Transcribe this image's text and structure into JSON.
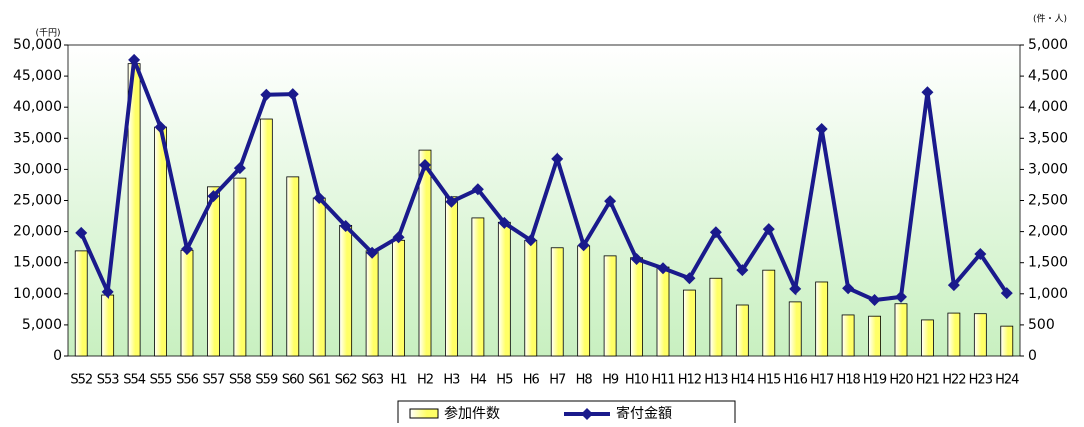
{
  "chart_data": {
    "type": "bar-line",
    "y_unit_label": "(千円)",
    "y2_unit_label": "(件・人)",
    "categories": [
      "S52",
      "S53",
      "S54",
      "S55",
      "S56",
      "S57",
      "S58",
      "S59",
      "S60",
      "S61",
      "S62",
      "S63",
      "H1",
      "H2",
      "H3",
      "H4",
      "H5",
      "H6",
      "H7",
      "H8",
      "H9",
      "H10",
      "H11",
      "H12",
      "H13",
      "H14",
      "H15",
      "H16",
      "H17",
      "H18",
      "H19",
      "H20",
      "H21",
      "H22",
      "H23",
      "H24"
    ],
    "series": [
      {
        "name": "参加件数",
        "type": "bar",
        "axis": "y2",
        "color": "#ffff66",
        "values": [
          1690,
          980,
          4700,
          3680,
          1700,
          2720,
          2860,
          3810,
          2880,
          2540,
          2100,
          1690,
          1860,
          3310,
          2560,
          2220,
          2150,
          1860,
          1740,
          1770,
          1610,
          1580,
          1430,
          1060,
          1250,
          820,
          1380,
          870,
          1190,
          660,
          640,
          840,
          580,
          690,
          680,
          480
        ]
      },
      {
        "name": "寄付金額",
        "type": "line",
        "axis": "y",
        "color": "#1a1a8c",
        "values": [
          19800,
          10300,
          47600,
          36800,
          17200,
          25700,
          30200,
          42000,
          42100,
          25400,
          20900,
          16600,
          19100,
          30700,
          24800,
          26800,
          21400,
          18600,
          31700,
          17800,
          24900,
          15600,
          14100,
          12500,
          19900,
          13800,
          20400,
          10800,
          36500,
          10900,
          9000,
          9500,
          42400,
          11400,
          16400,
          10100
        ]
      }
    ],
    "ylim": [
      0,
      50000
    ],
    "yticks": [
      0,
      {
        "value": 5000,
        "label": "5,000"
      },
      {
        "value": 10000,
        "label": "10,000"
      },
      {
        "value": 15000,
        "label": "15,000"
      },
      {
        "value": 20000,
        "label": "20,000"
      },
      {
        "value": 25000,
        "label": "25,000"
      },
      {
        "value": 30000,
        "label": "30,000"
      },
      {
        "value": 35000,
        "label": "35,000"
      },
      {
        "value": 40000,
        "label": "40,000"
      },
      {
        "value": 45000,
        "label": "45,000"
      },
      {
        "value": 50000,
        "label": "50,000"
      }
    ],
    "y2lim": [
      0,
      5000
    ],
    "y2ticks": [
      0,
      500,
      {
        "value": 1000,
        "label": "1,000"
      },
      {
        "value": 1500,
        "label": "1,500"
      },
      {
        "value": 2000,
        "label": "2,000"
      },
      {
        "value": 2500,
        "label": "2,500"
      },
      {
        "value": 3000,
        "label": "3,000"
      },
      {
        "value": 3500,
        "label": "3,500"
      },
      {
        "value": 4000,
        "label": "4,000"
      },
      {
        "value": 4500,
        "label": "4,500"
      },
      {
        "value": 5000,
        "label": "5,000"
      }
    ]
  }
}
